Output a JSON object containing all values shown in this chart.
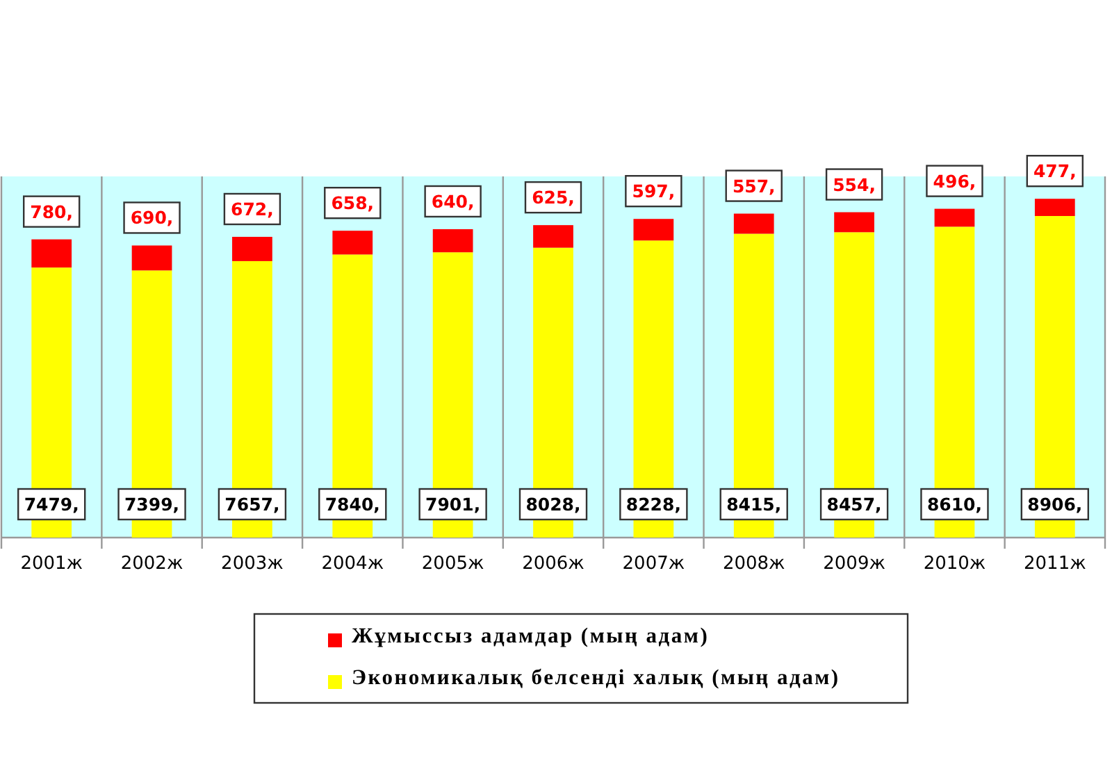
{
  "chart_data": {
    "type": "bar",
    "stacked": true,
    "categories": [
      "2001ж",
      "2002ж",
      "2003ж",
      "2004ж",
      "2005ж",
      "2006ж",
      "2007ж",
      "2008ж",
      "2009ж",
      "2010ж",
      "2011ж"
    ],
    "series": [
      {
        "name": "Экономикалық белсенді халық (мың адам)",
        "color": "#ffff00",
        "values": [
          7479,
          7399,
          7657,
          7840,
          7901,
          8028,
          8228,
          8415,
          8457,
          8610,
          8906
        ],
        "value_labels": [
          "7479,",
          "7399,",
          "7657,",
          "7840,",
          "7901,",
          "8028,",
          "8228,",
          "8415,",
          "8457,",
          "8610,",
          "8906,"
        ]
      },
      {
        "name": "Жұмыссыз адамдар (мың адам)",
        "color": "#ff0000",
        "values": [
          780,
          690,
          672,
          658,
          640,
          625,
          597,
          557,
          554,
          496,
          477
        ],
        "value_labels": [
          "780,",
          "690,",
          "672,",
          "658,",
          "640,",
          "625,",
          "597,",
          "557,",
          "554,",
          "496,",
          "477,"
        ]
      }
    ],
    "legend": "bottom",
    "grid": "x"
  }
}
